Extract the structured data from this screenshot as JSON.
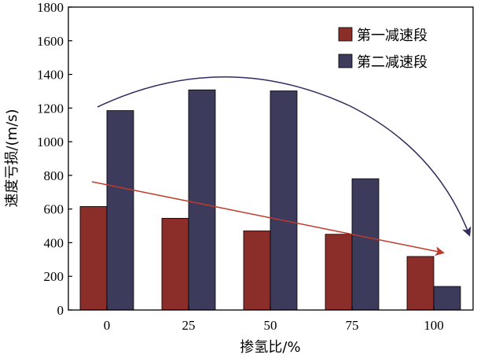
{
  "chart_data": {
    "type": "bar",
    "title": "",
    "xlabel": "掺氢比/%",
    "ylabel": "速度亏损/(m/s)",
    "categories": [
      "0",
      "25",
      "50",
      "75",
      "100"
    ],
    "series": [
      {
        "name": "第一减速段",
        "values": [
          615,
          545,
          470,
          450,
          318
        ],
        "color": "#8B2E2A"
      },
      {
        "name": "第二减速段",
        "values": [
          1185,
          1308,
          1302,
          780,
          140
        ],
        "color": "#3D3B5C"
      }
    ],
    "ylim": [
      0,
      1800
    ],
    "yticks": [
      0,
      200,
      400,
      600,
      800,
      1000,
      1200,
      1400,
      1600,
      1800
    ],
    "legend_position": "top-right",
    "grid": false,
    "annotations": [
      {
        "kind": "trend-arrow",
        "color": "#2E2C5E",
        "desc": "curved arrow over 第二减速段"
      },
      {
        "kind": "trend-arrow",
        "color": "#C0392B",
        "desc": "straight arrow over 第一减速段"
      }
    ]
  }
}
